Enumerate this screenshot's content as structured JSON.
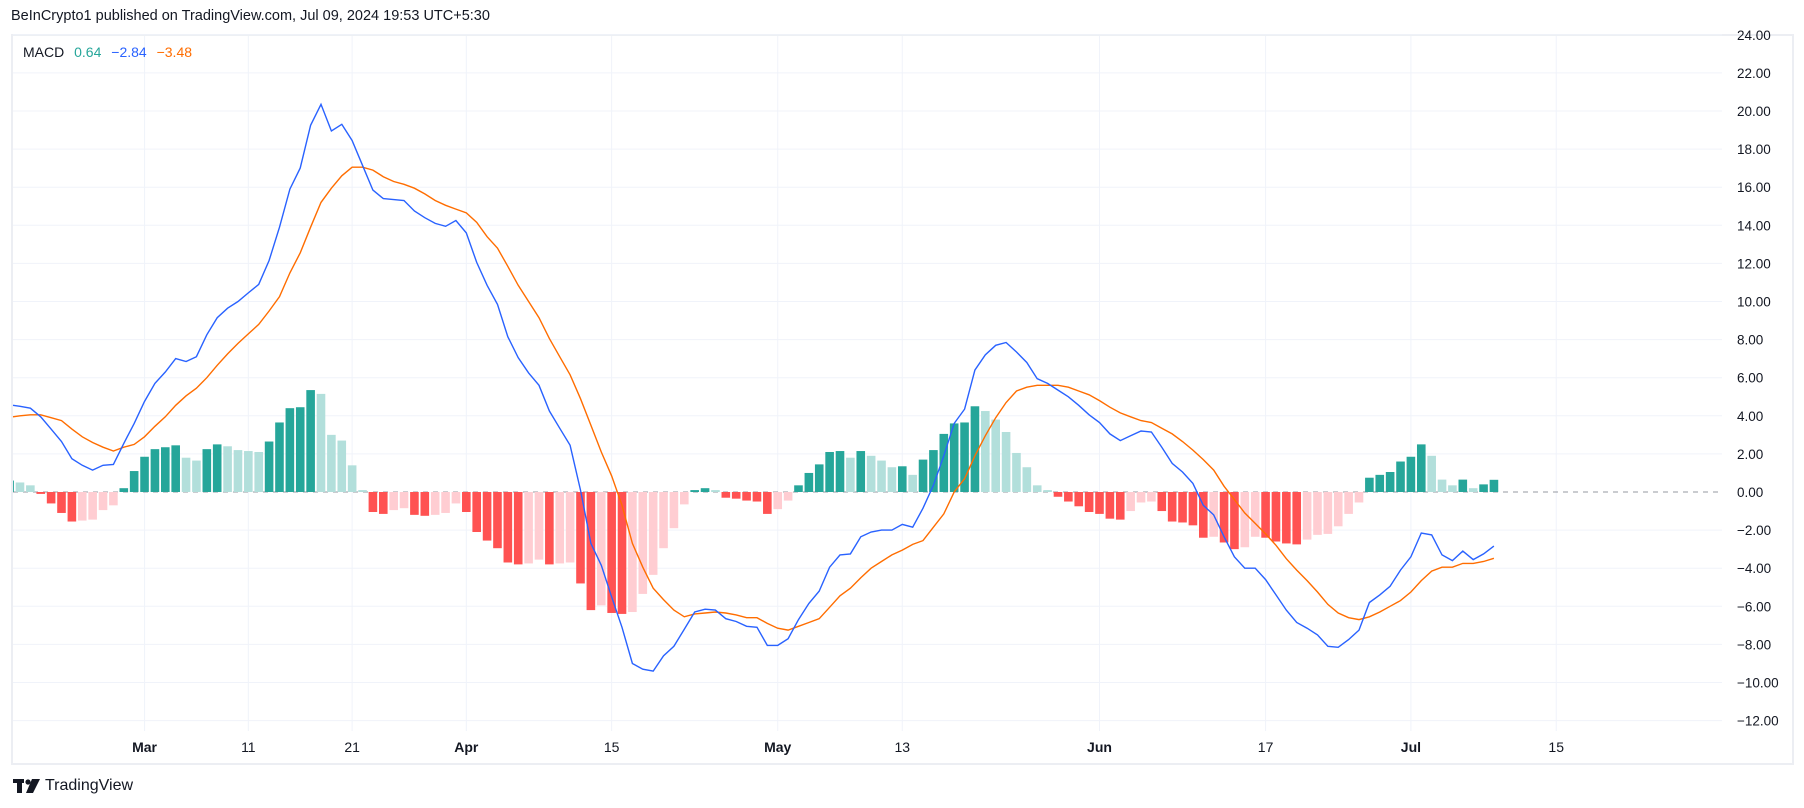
{
  "header": {
    "attribution": "BeInCrypto1 published on TradingView.com, Jul 09, 2024 19:53 UTC+5:30"
  },
  "legend": {
    "indicator": "MACD",
    "histogram_value": "0.64",
    "macd_value": "−2.84",
    "signal_value": "−3.48"
  },
  "footer": {
    "brand": "TradingView"
  },
  "colors": {
    "macd_line": "#2962ff",
    "signal_line": "#ff6d00",
    "hist_pos_rising": "#26a69a",
    "hist_pos_falling": "#b2dfdb",
    "hist_neg_falling": "#ff5252",
    "hist_neg_rising": "#ffcdd2",
    "grid": "#f0f3fa",
    "zero_line": "#9598a1"
  },
  "chart_data": {
    "type": "line+bar",
    "title": "",
    "xlabel": "",
    "ylabel": "",
    "ylim": [
      -13,
      24.3
    ],
    "grid": true,
    "legend_placement": "top-left",
    "y_ticks": [
      "24.00",
      "22.00",
      "20.00",
      "18.00",
      "16.00",
      "14.00",
      "12.00",
      "10.00",
      "8.00",
      "6.00",
      "4.00",
      "2.00",
      "0.00",
      "−2.00",
      "−4.00",
      "−6.00",
      "−8.00",
      "−10.00",
      "−12.00"
    ],
    "y_tick_values": [
      24,
      22,
      20,
      18,
      16,
      14,
      12,
      10,
      8,
      6,
      4,
      2,
      0,
      -2,
      -4,
      -6,
      -8,
      -10,
      -12
    ],
    "x_ticks": [
      {
        "label": "Mar",
        "date": "2024-03-01",
        "bold": true
      },
      {
        "label": "11",
        "date": "2024-03-11",
        "bold": false
      },
      {
        "label": "21",
        "date": "2024-03-21",
        "bold": false
      },
      {
        "label": "Apr",
        "date": "2024-04-01",
        "bold": true
      },
      {
        "label": "15",
        "date": "2024-04-15",
        "bold": false
      },
      {
        "label": "May",
        "date": "2024-05-01",
        "bold": true
      },
      {
        "label": "13",
        "date": "2024-05-13",
        "bold": false
      },
      {
        "label": "Jun",
        "date": "2024-06-01",
        "bold": true
      },
      {
        "label": "17",
        "date": "2024-06-17",
        "bold": false
      },
      {
        "label": "Jul",
        "date": "2024-07-01",
        "bold": true
      },
      {
        "label": "15",
        "date": "2024-07-15",
        "bold": false
      }
    ],
    "dates": [
      "2024-02-17",
      "2024-02-18",
      "2024-02-19",
      "2024-02-20",
      "2024-02-21",
      "2024-02-22",
      "2024-02-23",
      "2024-02-24",
      "2024-02-25",
      "2024-02-26",
      "2024-02-27",
      "2024-02-28",
      "2024-02-29",
      "2024-03-01",
      "2024-03-02",
      "2024-03-03",
      "2024-03-04",
      "2024-03-05",
      "2024-03-06",
      "2024-03-07",
      "2024-03-08",
      "2024-03-09",
      "2024-03-10",
      "2024-03-11",
      "2024-03-12",
      "2024-03-13",
      "2024-03-14",
      "2024-03-15",
      "2024-03-16",
      "2024-03-17",
      "2024-03-18",
      "2024-03-19",
      "2024-03-20",
      "2024-03-21",
      "2024-03-22",
      "2024-03-23",
      "2024-03-24",
      "2024-03-25",
      "2024-03-26",
      "2024-03-27",
      "2024-03-28",
      "2024-03-29",
      "2024-03-30",
      "2024-03-31",
      "2024-04-01",
      "2024-04-02",
      "2024-04-03",
      "2024-04-04",
      "2024-04-05",
      "2024-04-06",
      "2024-04-07",
      "2024-04-08",
      "2024-04-09",
      "2024-04-10",
      "2024-04-11",
      "2024-04-12",
      "2024-04-13",
      "2024-04-14",
      "2024-04-15",
      "2024-04-16",
      "2024-04-17",
      "2024-04-18",
      "2024-04-19",
      "2024-04-20",
      "2024-04-21",
      "2024-04-22",
      "2024-04-23",
      "2024-04-24",
      "2024-04-25",
      "2024-04-26",
      "2024-04-27",
      "2024-04-28",
      "2024-04-29",
      "2024-04-30",
      "2024-05-01",
      "2024-05-02",
      "2024-05-03",
      "2024-05-04",
      "2024-05-05",
      "2024-05-06",
      "2024-05-07",
      "2024-05-08",
      "2024-05-09",
      "2024-05-10",
      "2024-05-11",
      "2024-05-12",
      "2024-05-13",
      "2024-05-14",
      "2024-05-15",
      "2024-05-16",
      "2024-05-17",
      "2024-05-18",
      "2024-05-19",
      "2024-05-20",
      "2024-05-21",
      "2024-05-22",
      "2024-05-23",
      "2024-05-24",
      "2024-05-25",
      "2024-05-26",
      "2024-05-27",
      "2024-05-28",
      "2024-05-29",
      "2024-05-30",
      "2024-05-31",
      "2024-06-01",
      "2024-06-02",
      "2024-06-03",
      "2024-06-04",
      "2024-06-05",
      "2024-06-06",
      "2024-06-07",
      "2024-06-08",
      "2024-06-09",
      "2024-06-10",
      "2024-06-11",
      "2024-06-12",
      "2024-06-13",
      "2024-06-14",
      "2024-06-15",
      "2024-06-16",
      "2024-06-17",
      "2024-06-18",
      "2024-06-19",
      "2024-06-20",
      "2024-06-21",
      "2024-06-22",
      "2024-06-23",
      "2024-06-24",
      "2024-06-25",
      "2024-06-26",
      "2024-06-27",
      "2024-06-28",
      "2024-06-29",
      "2024-06-30",
      "2024-07-01",
      "2024-07-02",
      "2024-07-03",
      "2024-07-04",
      "2024-07-05",
      "2024-07-06",
      "2024-07-07",
      "2024-07-08",
      "2024-07-09"
    ],
    "series": [
      {
        "key": "macd",
        "type": "line",
        "values": [
          4.55,
          4.5,
          4.4,
          3.95,
          3.3,
          2.65,
          1.75,
          1.4,
          1.15,
          1.4,
          1.45,
          2.55,
          3.6,
          4.75,
          5.7,
          6.3,
          7.0,
          6.85,
          7.1,
          8.25,
          9.15,
          9.65,
          10.0,
          10.45,
          10.9,
          12.15,
          13.9,
          15.9,
          17.0,
          19.25,
          20.35,
          18.95,
          19.3,
          18.45,
          17.15,
          15.85,
          15.4,
          15.35,
          15.3,
          14.75,
          14.4,
          14.1,
          13.95,
          14.25,
          13.6,
          12.05,
          10.85,
          9.85,
          8.15,
          7.05,
          6.25,
          5.6,
          4.25,
          3.35,
          2.45,
          0.1,
          -2.7,
          -3.85,
          -5.5,
          -7.1,
          -9.0,
          -9.3,
          -9.4,
          -8.6,
          -8.1,
          -7.2,
          -6.3,
          -6.15,
          -6.2,
          -6.65,
          -6.8,
          -7.05,
          -7.1,
          -8.05,
          -8.05,
          -7.7,
          -6.7,
          -5.85,
          -5.2,
          -3.95,
          -3.3,
          -3.25,
          -2.35,
          -2.1,
          -2.0,
          -2.0,
          -1.7,
          -1.85,
          -0.85,
          0.35,
          1.9,
          3.6,
          4.35,
          6.4,
          7.2,
          7.7,
          7.85,
          7.35,
          6.8,
          5.95,
          5.7,
          5.35,
          5.0,
          4.55,
          4.05,
          3.65,
          3.05,
          2.7,
          2.95,
          3.2,
          3.15,
          2.35,
          1.5,
          1.05,
          0.45,
          -0.7,
          -1.2,
          -2.35,
          -3.4,
          -4.0,
          -4.0,
          -4.6,
          -5.4,
          -6.2,
          -6.85,
          -7.15,
          -7.5,
          -8.1,
          -8.15,
          -7.75,
          -7.25,
          -5.8,
          -5.4,
          -4.95,
          -4.1,
          -3.4,
          -2.15,
          -2.25,
          -3.3,
          -3.6,
          -3.1,
          -3.55,
          -3.25,
          -2.84
        ]
      },
      {
        "key": "signal",
        "type": "line",
        "values": [
          3.95,
          4.0,
          4.05,
          4.05,
          3.9,
          3.75,
          3.3,
          2.9,
          2.6,
          2.35,
          2.15,
          2.35,
          2.5,
          2.9,
          3.45,
          3.95,
          4.55,
          5.05,
          5.45,
          6.0,
          6.65,
          7.25,
          7.8,
          8.3,
          8.8,
          9.5,
          10.25,
          11.5,
          12.55,
          13.9,
          15.2,
          15.95,
          16.6,
          17.05,
          17.05,
          16.9,
          16.55,
          16.3,
          16.15,
          15.95,
          15.65,
          15.3,
          15.05,
          14.85,
          14.65,
          14.15,
          13.4,
          12.8,
          11.85,
          10.85,
          10.0,
          9.15,
          8.05,
          7.1,
          6.15,
          4.9,
          3.5,
          2.1,
          0.85,
          -0.7,
          -2.7,
          -3.95,
          -5.05,
          -5.65,
          -6.2,
          -6.55,
          -6.4,
          -6.35,
          -6.3,
          -6.35,
          -6.45,
          -6.6,
          -6.6,
          -6.9,
          -7.15,
          -7.25,
          -7.05,
          -6.85,
          -6.65,
          -6.05,
          -5.45,
          -5.05,
          -4.5,
          -4.0,
          -3.65,
          -3.3,
          -3.05,
          -2.75,
          -2.55,
          -1.85,
          -1.15,
          0.0,
          0.7,
          1.9,
          2.95,
          3.9,
          4.7,
          5.3,
          5.5,
          5.6,
          5.6,
          5.6,
          5.5,
          5.3,
          5.1,
          4.8,
          4.45,
          4.15,
          3.95,
          3.75,
          3.65,
          3.35,
          3.05,
          2.65,
          2.2,
          1.7,
          1.15,
          0.3,
          -0.4,
          -1.1,
          -1.65,
          -2.2,
          -2.8,
          -3.5,
          -4.1,
          -4.65,
          -5.25,
          -5.9,
          -6.35,
          -6.6,
          -6.7,
          -6.55,
          -6.3,
          -6.0,
          -5.7,
          -5.25,
          -4.65,
          -4.15,
          -3.95,
          -3.95,
          -3.75,
          -3.75,
          -3.65,
          -3.48
        ]
      },
      {
        "key": "histogram",
        "type": "bar",
        "values": [
          0.6,
          0.5,
          0.35,
          -0.1,
          -0.6,
          -1.1,
          -1.55,
          -1.5,
          -1.45,
          -0.95,
          -0.7,
          0.2,
          1.1,
          1.85,
          2.25,
          2.35,
          2.45,
          1.8,
          1.65,
          2.25,
          2.5,
          2.4,
          2.2,
          2.15,
          2.1,
          2.65,
          3.65,
          4.4,
          4.45,
          5.35,
          5.15,
          3.0,
          2.7,
          1.4,
          0.1,
          -1.05,
          -1.15,
          -0.95,
          -0.85,
          -1.2,
          -1.25,
          -1.2,
          -1.1,
          -0.6,
          -1.05,
          -2.1,
          -2.55,
          -2.95,
          -3.7,
          -3.8,
          -3.75,
          -3.55,
          -3.8,
          -3.75,
          -3.7,
          -4.8,
          -6.2,
          -5.95,
          -6.35,
          -6.4,
          -6.3,
          -5.35,
          -4.35,
          -2.95,
          -1.9,
          -0.65,
          0.1,
          0.2,
          0.1,
          -0.3,
          -0.35,
          -0.45,
          -0.5,
          -1.15,
          -0.9,
          -0.45,
          0.35,
          1.0,
          1.45,
          2.1,
          2.15,
          1.8,
          2.15,
          1.9,
          1.65,
          1.3,
          1.35,
          0.9,
          1.7,
          2.2,
          3.05,
          3.6,
          3.65,
          4.5,
          4.25,
          3.8,
          3.15,
          2.05,
          1.3,
          0.35,
          0.1,
          -0.25,
          -0.5,
          -0.75,
          -1.05,
          -1.15,
          -1.4,
          -1.45,
          -1.0,
          -0.55,
          -0.5,
          -1.0,
          -1.55,
          -1.6,
          -1.75,
          -2.4,
          -2.35,
          -2.65,
          -3.0,
          -2.9,
          -2.35,
          -2.4,
          -2.6,
          -2.7,
          -2.75,
          -2.5,
          -2.25,
          -2.2,
          -1.8,
          -1.15,
          -0.55,
          0.75,
          0.9,
          1.05,
          1.6,
          1.85,
          2.5,
          1.9,
          0.65,
          0.35,
          0.65,
          0.2,
          0.4,
          0.64
        ]
      }
    ]
  }
}
